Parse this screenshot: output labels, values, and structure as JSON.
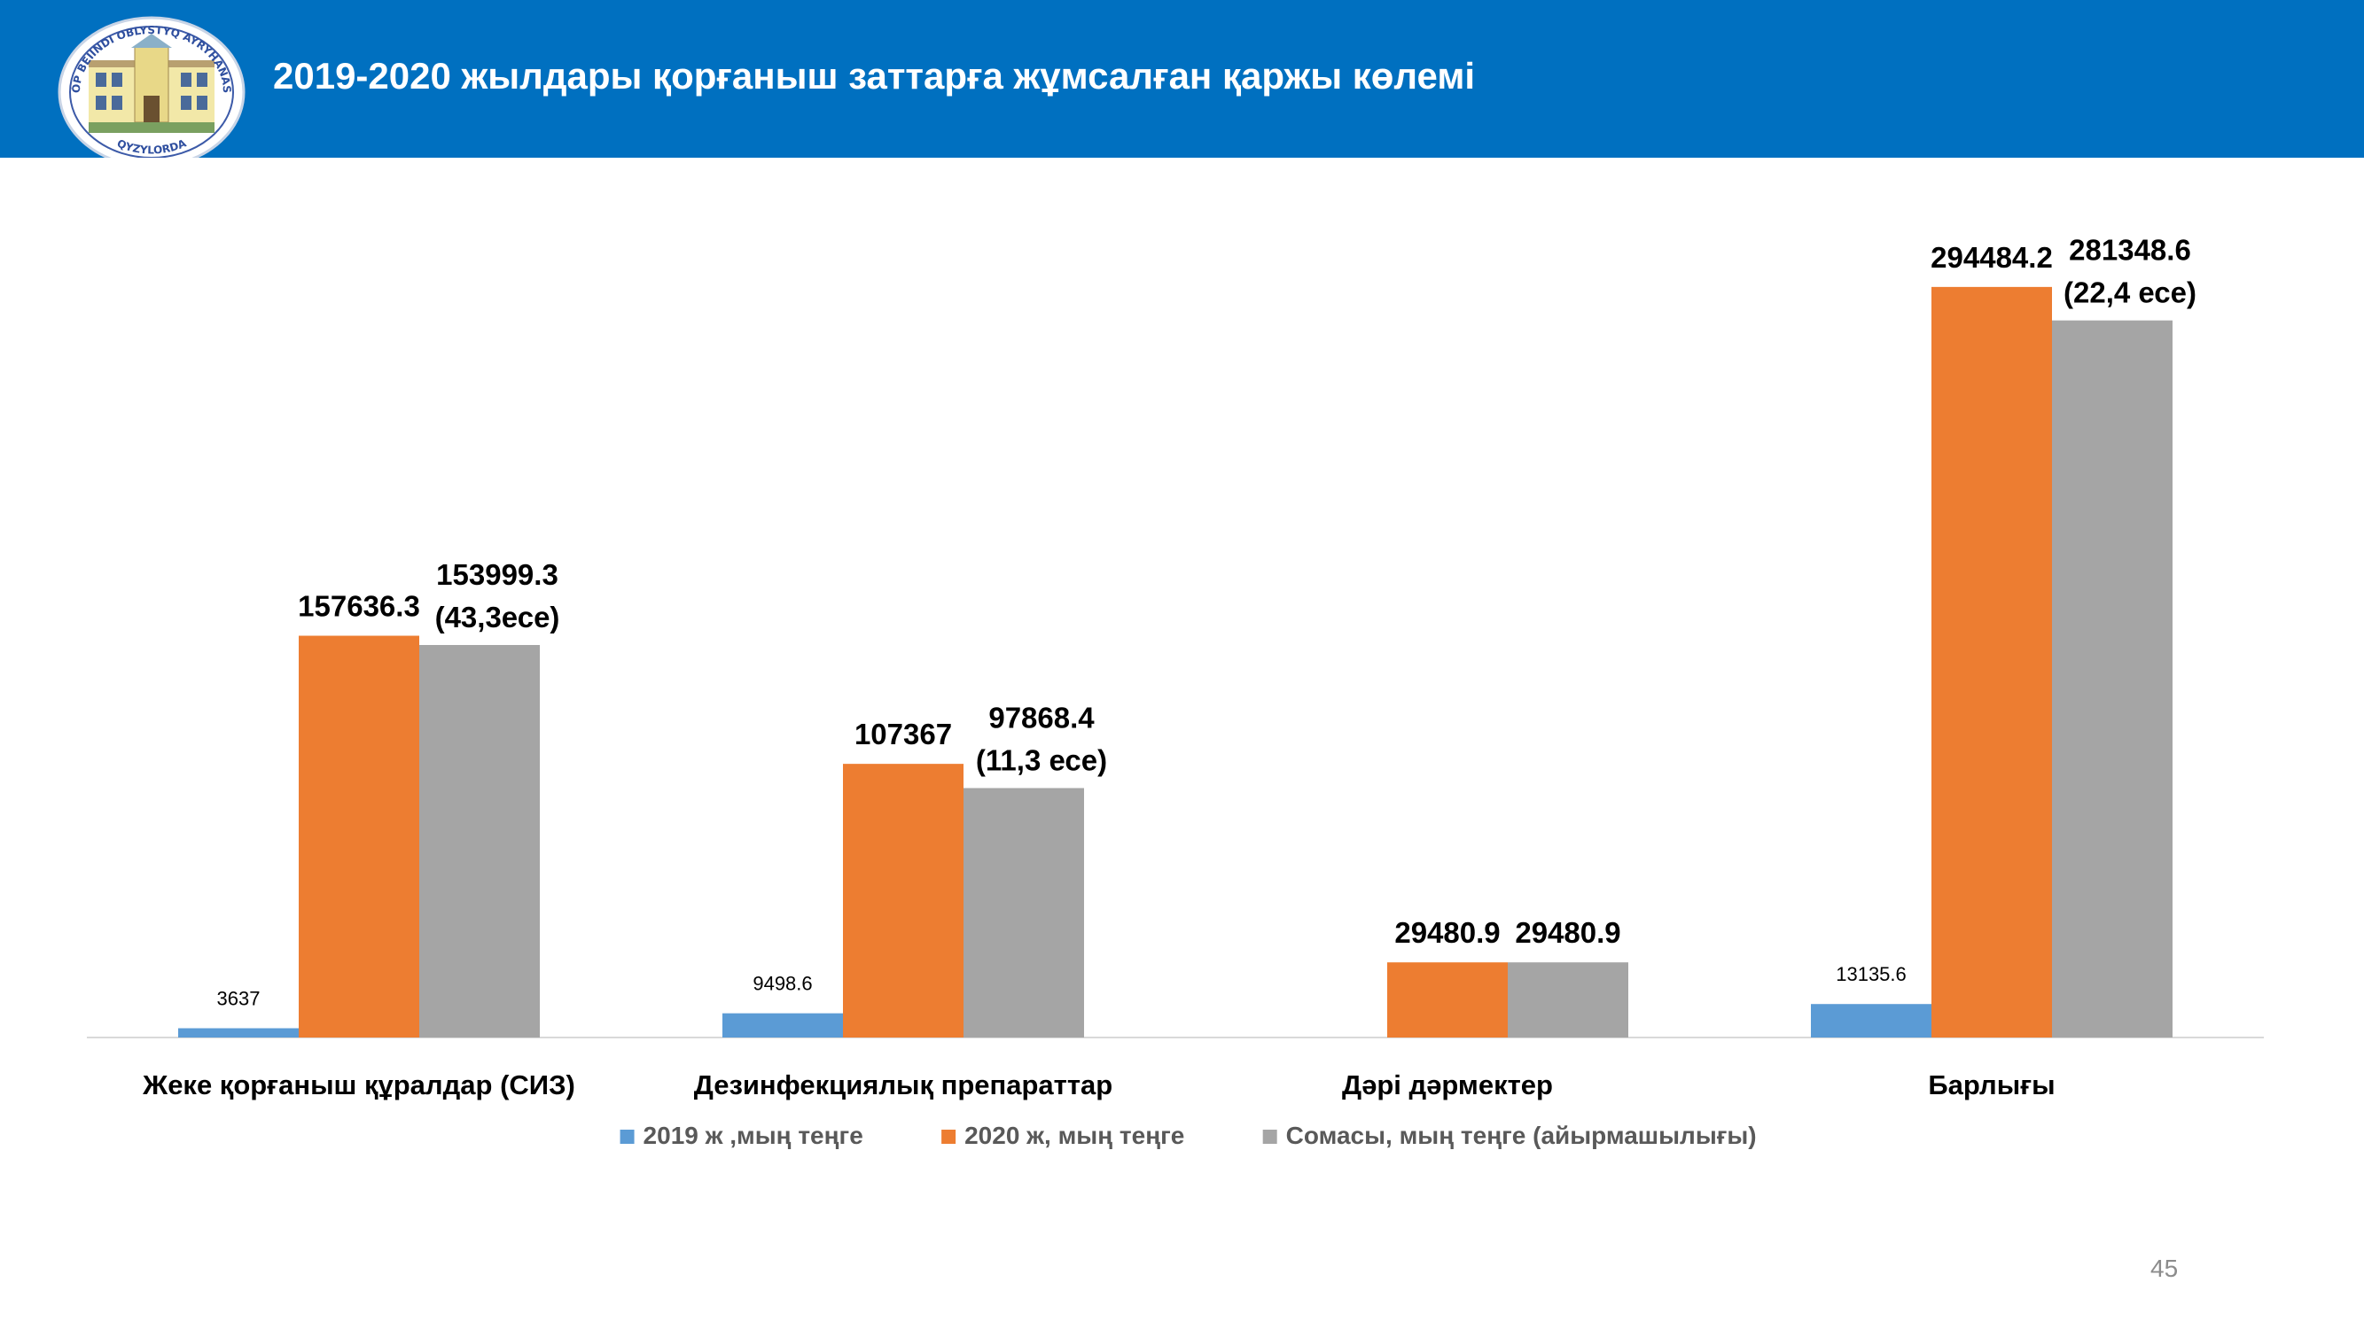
{
  "header": {
    "title": "2019-2020 жылдары қорғаныш заттарға жұмсалған қаржы көлемі",
    "logo_text_top": "KÓP BEIINDI OBLYSTYQ AYRYHANASY",
    "logo_text_bottom": "QYZYLORDA"
  },
  "colors": {
    "header_bg": "#0070c0",
    "series_2019": "#5b9bd5",
    "series_2020": "#ed7d31",
    "series_diff": "#a5a5a5"
  },
  "chart_data": {
    "type": "bar",
    "categories": [
      "Жеке қорғаныш құралдар (СИЗ)",
      "Дезинфекциялық препараттар",
      "Дәрі дәрмектер",
      "Барлығы"
    ],
    "series": [
      {
        "name": "2019 ж ,мың теңге",
        "values": [
          3637,
          9498.6,
          null,
          13135.6
        ],
        "labels": [
          "3637",
          "9498.6",
          "",
          "13135.6"
        ]
      },
      {
        "name": "2020 ж, мың теңге",
        "values": [
          157636.3,
          107367,
          29480.9,
          294484.2
        ],
        "labels": [
          "157636.3",
          "107367",
          "29480.9",
          "294484.2"
        ]
      },
      {
        "name": "Сомасы, мың теңге (айырмашылығы)",
        "values": [
          153999.3,
          97868.4,
          29480.9,
          281348.6
        ],
        "labels": [
          "153999.3",
          "97868.4",
          "29480.9",
          "281348.6"
        ],
        "label_notes": [
          "(43,3есе)",
          "(11,3 есе)",
          "",
          "(22,4 есе)"
        ]
      }
    ],
    "ylim": [
      0,
      300000
    ],
    "legend_position": "bottom",
    "grid": false
  },
  "page_number": "45"
}
